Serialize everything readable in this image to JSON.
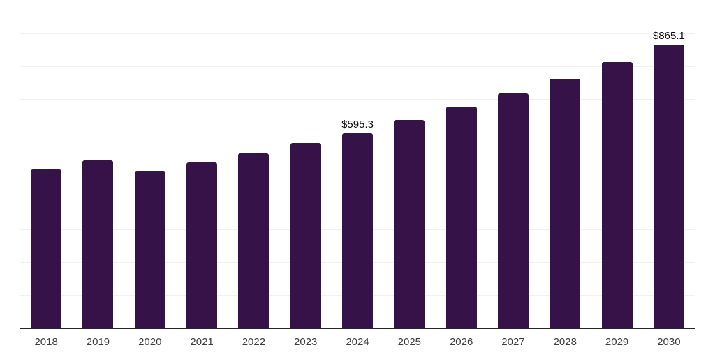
{
  "chart_data": {
    "type": "bar",
    "title": "",
    "xlabel": "",
    "ylabel": "",
    "categories": [
      "2018",
      "2019",
      "2020",
      "2021",
      "2022",
      "2023",
      "2024",
      "2025",
      "2026",
      "2027",
      "2028",
      "2029",
      "2030"
    ],
    "values": [
      484,
      512,
      480,
      506,
      534,
      566,
      595.3,
      635,
      676,
      717,
      761,
      813,
      865.1
    ],
    "bar_labels": [
      {
        "index": 6,
        "text": "$595.3"
      },
      {
        "index": 12,
        "text": "$865.1"
      }
    ],
    "ylim": [
      0,
      1000
    ],
    "gridline_step": 100,
    "grid": "horizontal",
    "legend": "none",
    "colors": {
      "bar": "#351349",
      "axis_line": "#262626",
      "gridline": "#f1f1f1",
      "tick_label": "#3d3d3d",
      "data_label": "#0d0d0d",
      "background": "#ffffff"
    }
  }
}
